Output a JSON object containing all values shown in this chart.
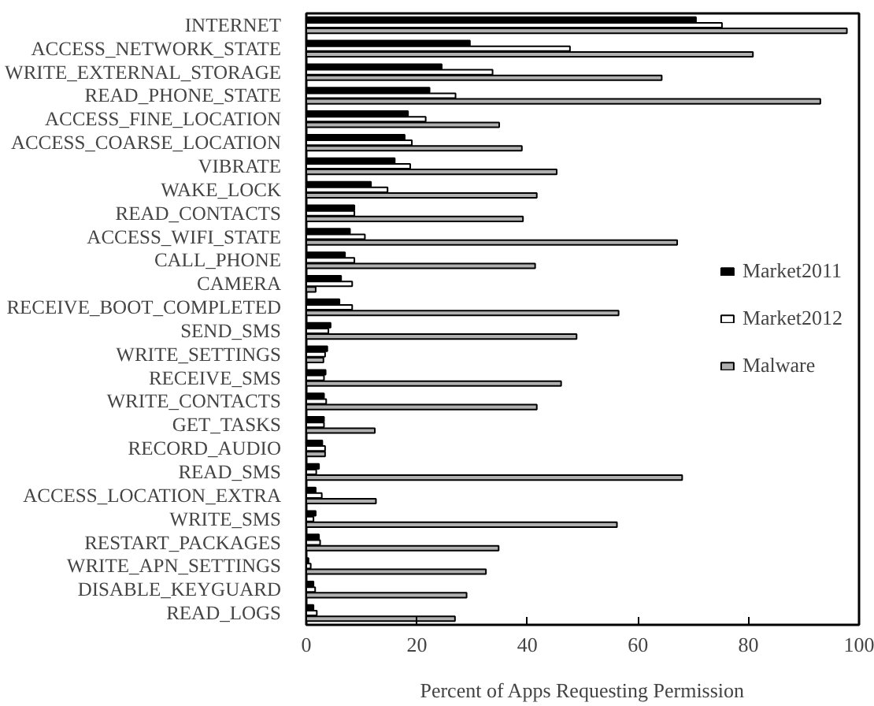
{
  "chart_data": {
    "type": "bar",
    "orientation": "horizontal",
    "xlabel": "Percent of Apps Requesting Permission",
    "categories": [
      "INTERNET",
      "ACCESS_NETWORK_STATE",
      "WRITE_EXTERNAL_STORAGE",
      "READ_PHONE_STATE",
      "ACCESS_FINE_LOCATION",
      "ACCESS_COARSE_LOCATION",
      "VIBRATE",
      "WAKE_LOCK",
      "READ_CONTACTS",
      "ACCESS_WIFI_STATE",
      "CALL_PHONE",
      "CAMERA",
      "RECEIVE_BOOT_COMPLETED",
      "SEND_SMS",
      "WRITE_SETTINGS",
      "RECEIVE_SMS",
      "WRITE_CONTACTS",
      "GET_TASKS",
      "RECORD_AUDIO",
      "READ_SMS",
      "ACCESS_LOCATION_EXTRA",
      "WRITE_SMS",
      "RESTART_PACKAGES",
      "WRITE_APN_SETTINGS",
      "DISABLE_KEYGUARD",
      "READ_LOGS"
    ],
    "series": [
      {
        "name": "Market2011",
        "color": "#000000",
        "values": [
          70.5,
          29.6,
          24.5,
          22.3,
          18.4,
          17.8,
          16.0,
          11.7,
          8.7,
          7.9,
          7.0,
          6.3,
          6.0,
          4.4,
          3.8,
          3.5,
          3.2,
          3.2,
          2.9,
          2.3,
          1.7,
          1.7,
          2.3,
          0.4,
          1.3,
          1.3
        ]
      },
      {
        "name": "Market2012",
        "color": "#ffffff",
        "values": [
          75.2,
          47.7,
          33.7,
          27.0,
          21.6,
          19.1,
          18.8,
          14.7,
          8.7,
          10.6,
          8.7,
          8.3,
          8.3,
          4.0,
          3.4,
          3.2,
          3.6,
          3.2,
          3.4,
          1.8,
          2.8,
          1.3,
          2.5,
          0.8,
          1.6,
          1.9
        ]
      },
      {
        "name": "Malware",
        "color": "#b0b0b0",
        "values": [
          97.8,
          80.8,
          64.3,
          93.0,
          34.9,
          39.0,
          45.3,
          41.7,
          39.2,
          67.1,
          41.4,
          1.7,
          56.5,
          48.9,
          3.1,
          46.1,
          41.7,
          12.4,
          3.4,
          68.0,
          12.6,
          56.2,
          34.8,
          32.5,
          29.0,
          26.9
        ]
      }
    ],
    "xlim": [
      0,
      100
    ],
    "xticks": [
      0,
      20,
      40,
      60,
      80,
      100
    ],
    "grid": false,
    "legend": "right"
  }
}
